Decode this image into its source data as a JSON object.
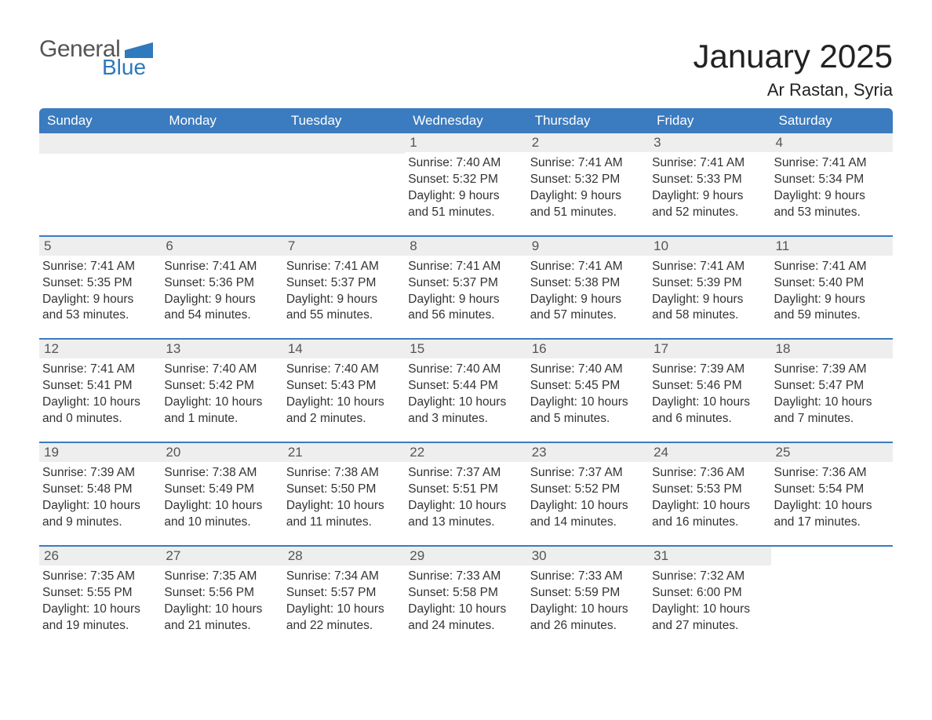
{
  "logo": {
    "word1": "General",
    "word2": "Blue"
  },
  "title": "January 2025",
  "location": "Ar Rastan, Syria",
  "colors": {
    "headerBar": "#3b7bbf",
    "dayNumBg": "#eeeeee",
    "weekBorder": "#3b7bbf",
    "logoBlue": "#2f79bd",
    "textDark": "#333333"
  },
  "weekdays": [
    "Sunday",
    "Monday",
    "Tuesday",
    "Wednesday",
    "Thursday",
    "Friday",
    "Saturday"
  ],
  "weeks": [
    [
      {
        "empty": true
      },
      {
        "empty": true
      },
      {
        "empty": true
      },
      {
        "n": "1",
        "sunrise": "Sunrise: 7:40 AM",
        "sunset": "Sunset: 5:32 PM",
        "d1": "Daylight: 9 hours",
        "d2": "and 51 minutes."
      },
      {
        "n": "2",
        "sunrise": "Sunrise: 7:41 AM",
        "sunset": "Sunset: 5:32 PM",
        "d1": "Daylight: 9 hours",
        "d2": "and 51 minutes."
      },
      {
        "n": "3",
        "sunrise": "Sunrise: 7:41 AM",
        "sunset": "Sunset: 5:33 PM",
        "d1": "Daylight: 9 hours",
        "d2": "and 52 minutes."
      },
      {
        "n": "4",
        "sunrise": "Sunrise: 7:41 AM",
        "sunset": "Sunset: 5:34 PM",
        "d1": "Daylight: 9 hours",
        "d2": "and 53 minutes."
      }
    ],
    [
      {
        "n": "5",
        "sunrise": "Sunrise: 7:41 AM",
        "sunset": "Sunset: 5:35 PM",
        "d1": "Daylight: 9 hours",
        "d2": "and 53 minutes."
      },
      {
        "n": "6",
        "sunrise": "Sunrise: 7:41 AM",
        "sunset": "Sunset: 5:36 PM",
        "d1": "Daylight: 9 hours",
        "d2": "and 54 minutes."
      },
      {
        "n": "7",
        "sunrise": "Sunrise: 7:41 AM",
        "sunset": "Sunset: 5:37 PM",
        "d1": "Daylight: 9 hours",
        "d2": "and 55 minutes."
      },
      {
        "n": "8",
        "sunrise": "Sunrise: 7:41 AM",
        "sunset": "Sunset: 5:37 PM",
        "d1": "Daylight: 9 hours",
        "d2": "and 56 minutes."
      },
      {
        "n": "9",
        "sunrise": "Sunrise: 7:41 AM",
        "sunset": "Sunset: 5:38 PM",
        "d1": "Daylight: 9 hours",
        "d2": "and 57 minutes."
      },
      {
        "n": "10",
        "sunrise": "Sunrise: 7:41 AM",
        "sunset": "Sunset: 5:39 PM",
        "d1": "Daylight: 9 hours",
        "d2": "and 58 minutes."
      },
      {
        "n": "11",
        "sunrise": "Sunrise: 7:41 AM",
        "sunset": "Sunset: 5:40 PM",
        "d1": "Daylight: 9 hours",
        "d2": "and 59 minutes."
      }
    ],
    [
      {
        "n": "12",
        "sunrise": "Sunrise: 7:41 AM",
        "sunset": "Sunset: 5:41 PM",
        "d1": "Daylight: 10 hours",
        "d2": "and 0 minutes."
      },
      {
        "n": "13",
        "sunrise": "Sunrise: 7:40 AM",
        "sunset": "Sunset: 5:42 PM",
        "d1": "Daylight: 10 hours",
        "d2": "and 1 minute."
      },
      {
        "n": "14",
        "sunrise": "Sunrise: 7:40 AM",
        "sunset": "Sunset: 5:43 PM",
        "d1": "Daylight: 10 hours",
        "d2": "and 2 minutes."
      },
      {
        "n": "15",
        "sunrise": "Sunrise: 7:40 AM",
        "sunset": "Sunset: 5:44 PM",
        "d1": "Daylight: 10 hours",
        "d2": "and 3 minutes."
      },
      {
        "n": "16",
        "sunrise": "Sunrise: 7:40 AM",
        "sunset": "Sunset: 5:45 PM",
        "d1": "Daylight: 10 hours",
        "d2": "and 5 minutes."
      },
      {
        "n": "17",
        "sunrise": "Sunrise: 7:39 AM",
        "sunset": "Sunset: 5:46 PM",
        "d1": "Daylight: 10 hours",
        "d2": "and 6 minutes."
      },
      {
        "n": "18",
        "sunrise": "Sunrise: 7:39 AM",
        "sunset": "Sunset: 5:47 PM",
        "d1": "Daylight: 10 hours",
        "d2": "and 7 minutes."
      }
    ],
    [
      {
        "n": "19",
        "sunrise": "Sunrise: 7:39 AM",
        "sunset": "Sunset: 5:48 PM",
        "d1": "Daylight: 10 hours",
        "d2": "and 9 minutes."
      },
      {
        "n": "20",
        "sunrise": "Sunrise: 7:38 AM",
        "sunset": "Sunset: 5:49 PM",
        "d1": "Daylight: 10 hours",
        "d2": "and 10 minutes."
      },
      {
        "n": "21",
        "sunrise": "Sunrise: 7:38 AM",
        "sunset": "Sunset: 5:50 PM",
        "d1": "Daylight: 10 hours",
        "d2": "and 11 minutes."
      },
      {
        "n": "22",
        "sunrise": "Sunrise: 7:37 AM",
        "sunset": "Sunset: 5:51 PM",
        "d1": "Daylight: 10 hours",
        "d2": "and 13 minutes."
      },
      {
        "n": "23",
        "sunrise": "Sunrise: 7:37 AM",
        "sunset": "Sunset: 5:52 PM",
        "d1": "Daylight: 10 hours",
        "d2": "and 14 minutes."
      },
      {
        "n": "24",
        "sunrise": "Sunrise: 7:36 AM",
        "sunset": "Sunset: 5:53 PM",
        "d1": "Daylight: 10 hours",
        "d2": "and 16 minutes."
      },
      {
        "n": "25",
        "sunrise": "Sunrise: 7:36 AM",
        "sunset": "Sunset: 5:54 PM",
        "d1": "Daylight: 10 hours",
        "d2": "and 17 minutes."
      }
    ],
    [
      {
        "n": "26",
        "sunrise": "Sunrise: 7:35 AM",
        "sunset": "Sunset: 5:55 PM",
        "d1": "Daylight: 10 hours",
        "d2": "and 19 minutes."
      },
      {
        "n": "27",
        "sunrise": "Sunrise: 7:35 AM",
        "sunset": "Sunset: 5:56 PM",
        "d1": "Daylight: 10 hours",
        "d2": "and 21 minutes."
      },
      {
        "n": "28",
        "sunrise": "Sunrise: 7:34 AM",
        "sunset": "Sunset: 5:57 PM",
        "d1": "Daylight: 10 hours",
        "d2": "and 22 minutes."
      },
      {
        "n": "29",
        "sunrise": "Sunrise: 7:33 AM",
        "sunset": "Sunset: 5:58 PM",
        "d1": "Daylight: 10 hours",
        "d2": "and 24 minutes."
      },
      {
        "n": "30",
        "sunrise": "Sunrise: 7:33 AM",
        "sunset": "Sunset: 5:59 PM",
        "d1": "Daylight: 10 hours",
        "d2": "and 26 minutes."
      },
      {
        "n": "31",
        "sunrise": "Sunrise: 7:32 AM",
        "sunset": "Sunset: 6:00 PM",
        "d1": "Daylight: 10 hours",
        "d2": "and 27 minutes."
      },
      {
        "empty": true,
        "noBg": true
      }
    ]
  ]
}
